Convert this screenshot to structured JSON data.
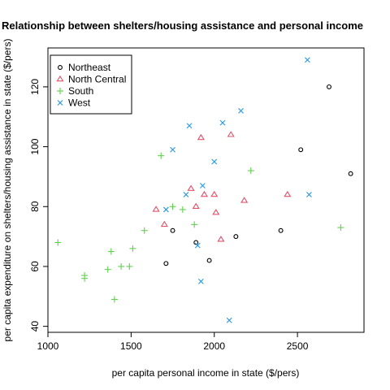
{
  "chart_data": {
    "type": "scatter",
    "title": "Relationship between shelters/housing assistance and personal income",
    "xlabel": "per capita personal income in state ($/pers)",
    "ylabel": "per capita expenditure on shelters/housing assistance in state ($/pers)",
    "xlim": [
      1000,
      2900
    ],
    "ylim": [
      38,
      133
    ],
    "x_ticks": [
      1000,
      1500,
      2000,
      2500
    ],
    "y_ticks": [
      40,
      60,
      80,
      100,
      120
    ],
    "legend_position": "top-left",
    "series": [
      {
        "name": "Northeast",
        "marker": "circle",
        "color": "#000000",
        "points": [
          [
            2690,
            120
          ],
          [
            2820,
            91
          ],
          [
            2520,
            99
          ],
          [
            2400,
            72
          ],
          [
            2130,
            70
          ],
          [
            1750,
            72
          ],
          [
            1710,
            61
          ],
          [
            1890,
            68
          ],
          [
            1970,
            62
          ]
        ]
      },
      {
        "name": "North Central",
        "marker": "triangle",
        "color": "#df536b",
        "points": [
          [
            1920,
            103
          ],
          [
            2100,
            104
          ],
          [
            2440,
            84
          ],
          [
            1860,
            86
          ],
          [
            1940,
            84
          ],
          [
            2000,
            84
          ],
          [
            1890,
            80
          ],
          [
            1650,
            79
          ],
          [
            1700,
            74
          ],
          [
            2010,
            78
          ],
          [
            2180,
            82
          ],
          [
            2040,
            69
          ]
        ]
      },
      {
        "name": "South",
        "marker": "plus",
        "color": "#61d04f",
        "points": [
          [
            1680,
            97
          ],
          [
            2220,
            92
          ],
          [
            2760,
            73
          ],
          [
            1060,
            68
          ],
          [
            1220,
            57
          ],
          [
            1220,
            56
          ],
          [
            1380,
            65
          ],
          [
            1360,
            59
          ],
          [
            1440,
            60
          ],
          [
            1490,
            60
          ],
          [
            1510,
            66
          ],
          [
            1580,
            72
          ],
          [
            1400,
            49
          ],
          [
            1750,
            80
          ],
          [
            1810,
            79
          ],
          [
            1880,
            74
          ]
        ]
      },
      {
        "name": "West",
        "marker": "x",
        "color": "#2297e6",
        "points": [
          [
            2560,
            129
          ],
          [
            2160,
            112
          ],
          [
            2050,
            108
          ],
          [
            1850,
            107
          ],
          [
            2000,
            95
          ],
          [
            1750,
            99
          ],
          [
            1930,
            87
          ],
          [
            1830,
            84
          ],
          [
            2570,
            84
          ],
          [
            1710,
            79
          ],
          [
            1900,
            67
          ],
          [
            1920,
            55
          ],
          [
            2090,
            42
          ]
        ]
      }
    ]
  }
}
